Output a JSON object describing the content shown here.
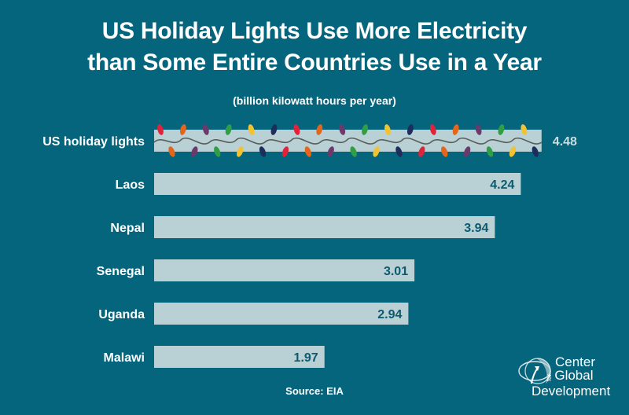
{
  "title_line1": "US Holiday Lights Use More Electricity",
  "title_line2": "than Some Entire Countries Use in a Year",
  "subtitle": "(billion kilowatt hours per year)",
  "source": "Source: EIA",
  "logo": {
    "icon": "globe-arrow-icon",
    "line1": "Center",
    "for": "for",
    "line2": "Global",
    "line3": "Development"
  },
  "colors": {
    "background": "#05657d",
    "bar": "#b9d1d5",
    "value_inside": "#0b5a70",
    "value_outside": "#c9dde0",
    "text": "#ffffff",
    "bulbs": [
      "#e0233a",
      "#1d2e5c",
      "#f1c232",
      "#2f9e44",
      "#6b3a6b",
      "#e5661a"
    ]
  },
  "chart_data": {
    "type": "bar",
    "orientation": "horizontal",
    "title": "US Holiday Lights Use More Electricity than Some Entire Countries Use in a Year",
    "subtitle": "(billion kilowatt hours per year)",
    "xlabel": "",
    "ylabel": "",
    "grid": false,
    "categories": [
      "US holiday lights",
      "Laos",
      "Nepal",
      "Senegal",
      "Uganda",
      "Malawi"
    ],
    "values": [
      4.48,
      4.24,
      3.94,
      3.01,
      2.94,
      1.97
    ],
    "labels": [
      "4.48",
      "4.24",
      "3.94",
      "3.01",
      "2.94",
      "1.97"
    ],
    "xlim": [
      0,
      4.48
    ],
    "highlight": "US holiday lights",
    "source": "Source: EIA"
  }
}
